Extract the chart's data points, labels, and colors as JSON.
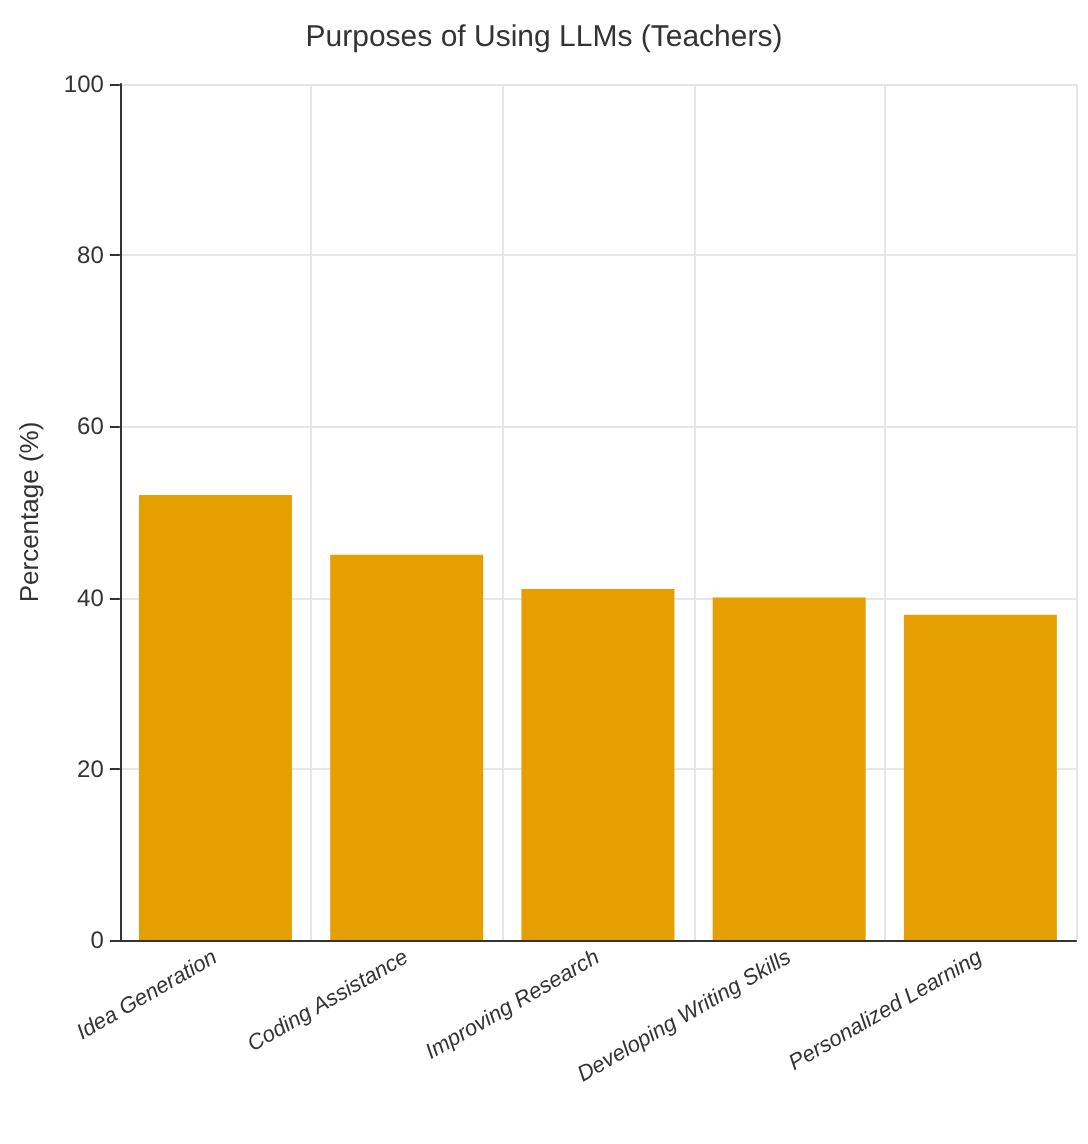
{
  "chart_data": {
    "type": "bar",
    "title": "Purposes of Using LLMs (Teachers)",
    "ylabel": "Percentage (%)",
    "categories": [
      "Idea Generation",
      "Coding Assistance",
      "Improving Research",
      "Developing Writing Skills",
      "Personalized Learning"
    ],
    "values": [
      52,
      45,
      41,
      40,
      38
    ],
    "color": "#e69f00",
    "ylim": [
      0,
      100
    ],
    "yticks": [
      0,
      20,
      40,
      60,
      80,
      100
    ],
    "grid": true
  }
}
